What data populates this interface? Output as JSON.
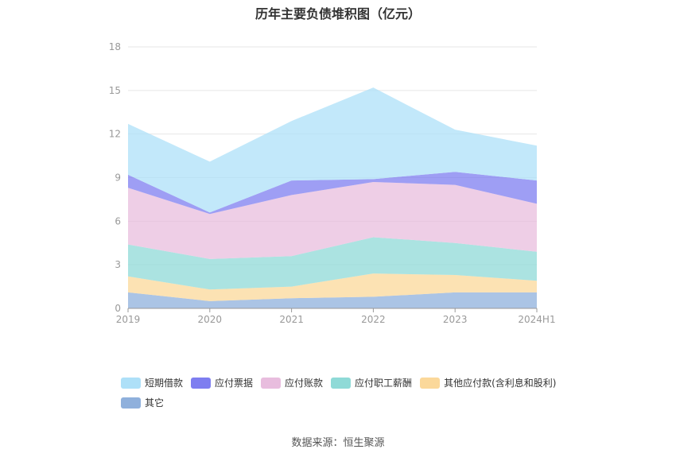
{
  "title": "历年主要负债堆积图（亿元）",
  "source": "数据来源：恒生聚源",
  "chart_data": {
    "type": "area",
    "stacked": true,
    "title": "历年主要负债堆积图（亿元）",
    "xlabel": "",
    "ylabel": "",
    "ylim": [
      0,
      18
    ],
    "yticks": [
      0,
      3,
      6,
      9,
      12,
      15,
      18
    ],
    "grid": true,
    "legend_position": "bottom",
    "categories": [
      "2019",
      "2020",
      "2021",
      "2022",
      "2023",
      "2024H1"
    ],
    "series": [
      {
        "name": "其它",
        "color": "#8fb0dc",
        "values": [
          1.1,
          0.5,
          0.7,
          0.8,
          1.1,
          1.1
        ]
      },
      {
        "name": "其他应付款(含利息和股利)",
        "color": "#fbd89a",
        "values": [
          1.1,
          0.8,
          0.8,
          1.6,
          1.2,
          0.8
        ]
      },
      {
        "name": "应付职工薪酬",
        "color": "#8fdad7",
        "values": [
          2.2,
          2.1,
          2.1,
          2.5,
          2.2,
          2.0
        ]
      },
      {
        "name": "应付账款",
        "color": "#e8bdde",
        "values": [
          3.9,
          3.1,
          4.2,
          3.8,
          4.0,
          3.3
        ]
      },
      {
        "name": "应付票据",
        "color": "#7e7ef0",
        "values": [
          0.9,
          0.1,
          1.0,
          0.2,
          0.9,
          1.6
        ]
      },
      {
        "name": "短期借款",
        "color": "#aee0f8",
        "values": [
          3.5,
          3.5,
          4.1,
          6.3,
          2.9,
          2.4
        ]
      }
    ]
  }
}
